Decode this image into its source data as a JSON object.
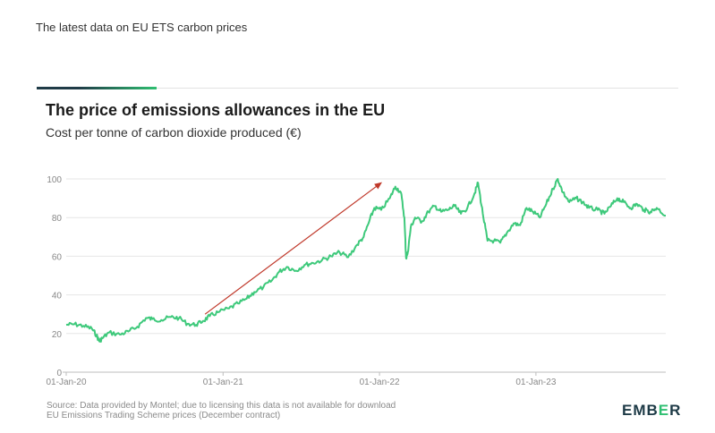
{
  "page": {
    "heading": "The latest data on EU ETS carbon prices"
  },
  "card": {
    "source_line1": "Source: Data provided by Montel; due to licensing this data is not available for download",
    "source_line2": "EU Emissions Trading Scheme prices (December contract)",
    "brand_logo": "EMBER",
    "colors": {
      "line": "#3ec97b",
      "arrow": "#c0392b",
      "accent_dark": "#1f3b47",
      "accent_green": "#2fbf71"
    }
  },
  "chart_data": {
    "type": "line",
    "title": "The price of emissions allowances in the EU",
    "subtitle": "Cost per tonne of carbon dioxide produced (€)",
    "xlabel": "",
    "ylabel": "",
    "ylim": [
      0,
      100
    ],
    "xlim": [
      "2020-01-01",
      "2023-10-31"
    ],
    "y_ticks": [
      0,
      20,
      40,
      60,
      80,
      100
    ],
    "x_ticks": [
      {
        "date": "2020-01-01",
        "label": "01-Jan-20"
      },
      {
        "date": "2021-01-01",
        "label": "01-Jan-21"
      },
      {
        "date": "2022-01-01",
        "label": "01-Jan-22"
      },
      {
        "date": "2023-01-01",
        "label": "01-Jan-23"
      }
    ],
    "grid": "horizontal",
    "series": [
      {
        "x": [
          "2020-01-01",
          "2020-01-20",
          "2020-02-10",
          "2020-03-01",
          "2020-03-12",
          "2020-03-18",
          "2020-03-25",
          "2020-04-10",
          "2020-05-05",
          "2020-05-25",
          "2020-06-15",
          "2020-07-05",
          "2020-07-20",
          "2020-08-10",
          "2020-09-01",
          "2020-09-20",
          "2020-10-10",
          "2020-10-30",
          "2020-11-15",
          "2020-12-01",
          "2020-12-20",
          "2021-01-15",
          "2021-02-05",
          "2021-02-25",
          "2021-03-15",
          "2021-04-05",
          "2021-04-25",
          "2021-05-12",
          "2021-05-30",
          "2021-06-20",
          "2021-07-10",
          "2021-07-30",
          "2021-08-20",
          "2021-09-10",
          "2021-09-30",
          "2021-10-20",
          "2021-11-10",
          "2021-11-25",
          "2021-12-08",
          "2021-12-20",
          "2022-01-05",
          "2022-01-25",
          "2022-02-07",
          "2022-02-20",
          "2022-02-28",
          "2022-03-04",
          "2022-03-08",
          "2022-03-15",
          "2022-03-25",
          "2022-04-10",
          "2022-04-25",
          "2022-05-10",
          "2022-05-25",
          "2022-06-10",
          "2022-06-25",
          "2022-07-10",
          "2022-07-25",
          "2022-08-10",
          "2022-08-19",
          "2022-08-30",
          "2022-09-10",
          "2022-09-25",
          "2022-10-10",
          "2022-10-25",
          "2022-11-10",
          "2022-11-25",
          "2022-12-10",
          "2022-12-25",
          "2023-01-10",
          "2023-01-25",
          "2023-02-10",
          "2023-02-21",
          "2023-03-05",
          "2023-03-20",
          "2023-04-05",
          "2023-04-20",
          "2023-05-05",
          "2023-05-25",
          "2023-06-10",
          "2023-06-25",
          "2023-07-10",
          "2023-07-25",
          "2023-08-10",
          "2023-08-25",
          "2023-09-10",
          "2023-09-25",
          "2023-10-10",
          "2023-10-31"
        ],
        "y": [
          24.5,
          24.8,
          24.0,
          22.5,
          19.0,
          16.0,
          17.5,
          20.5,
          19.5,
          21.0,
          23.5,
          28.0,
          27.5,
          27.0,
          28.5,
          28.0,
          25.0,
          24.5,
          26.5,
          29.0,
          31.0,
          33.0,
          35.5,
          38.0,
          41.5,
          44.0,
          47.5,
          52.0,
          54.5,
          52.5,
          55.5,
          56.5,
          58.0,
          60.0,
          62.0,
          59.5,
          66.0,
          70.0,
          78.0,
          85.0,
          84.0,
          90.0,
          96.0,
          93.0,
          80.0,
          59.0,
          62.0,
          75.0,
          80.0,
          78.0,
          83.0,
          86.0,
          83.0,
          84.0,
          86.0,
          82.0,
          85.0,
          92.0,
          98.0,
          82.0,
          68.0,
          68.0,
          67.0,
          72.0,
          77.0,
          76.0,
          85.0,
          83.0,
          80.0,
          87.0,
          95.0,
          100.0,
          93.0,
          88.0,
          90.0,
          88.0,
          85.0,
          84.0,
          82.0,
          86.0,
          90.0,
          88.0,
          85.0,
          87.0,
          84.0,
          83.0,
          85.0,
          81.0
        ]
      }
    ],
    "annotations": [
      {
        "type": "arrow",
        "from": {
          "date": "2020-11-20",
          "value": 30
        },
        "to": {
          "date": "2022-01-05",
          "value": 98
        }
      }
    ]
  }
}
